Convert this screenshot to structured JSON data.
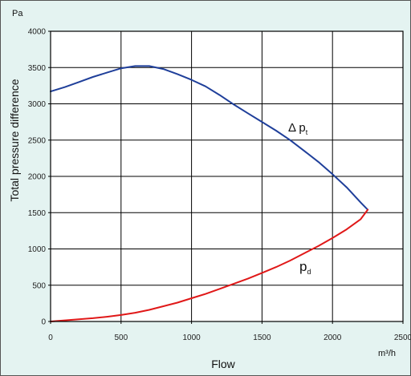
{
  "chart_data": {
    "type": "line",
    "xlabel": "Flow",
    "ylabel": "Total pressure difference",
    "y_unit": "Pa",
    "x_unit": "m³/h",
    "xlim": [
      0,
      2500
    ],
    "ylim": [
      0,
      4000
    ],
    "x_ticks": [
      0,
      500,
      1000,
      1500,
      2000,
      2500
    ],
    "y_ticks": [
      0,
      500,
      1000,
      1500,
      2000,
      2500,
      3000,
      3500,
      4000
    ],
    "grid": true,
    "series": [
      {
        "name": "Δ p",
        "subscript": "t",
        "color": "#1f3f9a",
        "x": [
          0,
          100,
          200,
          300,
          400,
          500,
          600,
          700,
          800,
          900,
          1000,
          1100,
          1200,
          1300,
          1400,
          1500,
          1600,
          1700,
          1800,
          1900,
          2000,
          2100,
          2200,
          2250
        ],
        "y": [
          3170,
          3230,
          3300,
          3370,
          3430,
          3490,
          3520,
          3520,
          3480,
          3410,
          3330,
          3240,
          3120,
          2990,
          2870,
          2750,
          2630,
          2500,
          2350,
          2200,
          2030,
          1850,
          1640,
          1540
        ]
      },
      {
        "name": "p",
        "subscript": "d",
        "color": "#e01818",
        "x": [
          0,
          100,
          200,
          300,
          400,
          500,
          600,
          700,
          800,
          900,
          1000,
          1100,
          1200,
          1300,
          1400,
          1500,
          1600,
          1700,
          1800,
          1900,
          2000,
          2100,
          2200,
          2250
        ],
        "y": [
          0,
          15,
          30,
          45,
          65,
          90,
          120,
          160,
          210,
          260,
          320,
          380,
          450,
          520,
          590,
          670,
          750,
          840,
          940,
          1040,
          1150,
          1270,
          1410,
          1540
        ]
      }
    ]
  }
}
